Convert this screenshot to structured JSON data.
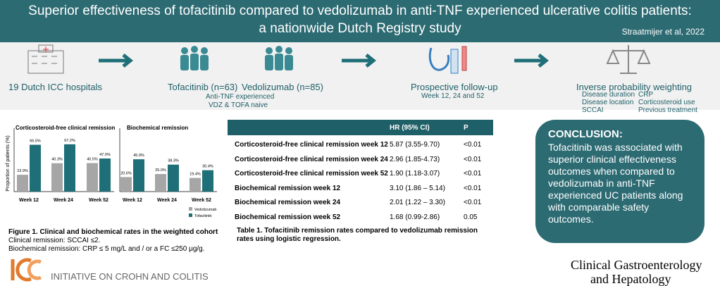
{
  "header": {
    "title_lines": [
      "Superior effectiveness of tofacitinib compared to vedolizumab in anti-TNF experienced ulcerative colitis patients:",
      "a nationwide Dutch Registry study"
    ],
    "citation": "Straatmijer et al, 2022"
  },
  "flow": {
    "hospitals": "19 Dutch ICC hospitals",
    "tofacitinib": "Tofacitinib (n=63)",
    "vedolizumab": "Vedolizumab (n=85)",
    "cohort_notes": [
      "Anti-TNF experienced",
      "VDZ & TOFA naive"
    ],
    "follow_up": "Prospective follow-up",
    "follow_up_weeks": "Week 12, 24 and 52",
    "weighting": "Inverse probability weighting",
    "covariates": [
      "Disease duration",
      "Disease location",
      "SCCAI",
      "CRP",
      "Corticosteroid use",
      "Previous treatment"
    ]
  },
  "chart_data": [
    {
      "type": "bar",
      "title": "Corticosteroid-free clinical remission",
      "y_label": "Proportion of patients (%)",
      "categories": [
        "Week 12",
        "Week 24",
        "Week 52"
      ],
      "ylim": [
        0,
        100
      ],
      "series": [
        {
          "name": "Vedolizumab",
          "color": "#a6a6a6",
          "values": [
            23.9,
            40.3,
            40.5
          ],
          "value_labels": [
            "23.9%",
            "40.3%",
            "40.5%"
          ]
        },
        {
          "name": "Tofacitinib",
          "color": "#1f6f78",
          "values": [
            66.5,
            67.2,
            47.0
          ],
          "value_labels": [
            "66.5%",
            "67.2%",
            "47.0%"
          ]
        }
      ]
    },
    {
      "type": "bar",
      "title": "Biochemical remission",
      "categories": [
        "Week 12",
        "Week 24",
        "Week 52"
      ],
      "ylim": [
        0,
        100
      ],
      "series": [
        {
          "name": "Vedolizumab",
          "color": "#a6a6a6",
          "values": [
            20.6,
            25.0,
            19.4
          ],
          "value_labels": [
            "20.6%",
            "25.0%",
            "19.4%"
          ]
        },
        {
          "name": "Tofacitinib",
          "color": "#1f6f78",
          "values": [
            45.9,
            38.3,
            30.4
          ],
          "value_labels": [
            "45.9%",
            "38.3%",
            "30.4%"
          ]
        }
      ],
      "legend": "bottom-right"
    }
  ],
  "figure_caption": {
    "title": "Figure 1. Clinical and biochemical rates in the weighted cohort",
    "lines": [
      "Clinical remission: SCCAI ≤2.",
      "Biochemical remission: CRP ≤ 5 mg/L and / or a FC ≤250    μg/g."
    ]
  },
  "table": {
    "header": [
      "HR (95% CI)",
      "P"
    ],
    "rows": [
      [
        "Corticosteroid-free clinical remission week 12",
        "5.87 (3.55-9.70)",
        "<0.01"
      ],
      [
        "Corticosteroid-free clinical remission week 24",
        "2.96 (1.85-4.73)",
        "<0.01"
      ],
      [
        "Corticosteroid-free clinical remission week 52",
        "1.90 (1.18-3.07)",
        "<0.01"
      ],
      [
        "Biochemical remission week 12",
        "3.10 (1.86 – 5.14)",
        "<0.01"
      ],
      [
        "Biochemical remission week 24",
        "2.01 (1.22 – 3.30)",
        "<0.01"
      ],
      [
        "Biochemical remission week 52",
        "1.68 (0.99-2.86)",
        "0.05"
      ]
    ],
    "caption": "Table 1. Tofacitinib remission rates compared to vedolizumab remission rates using logistic regression."
  },
  "conclusion": {
    "heading": "CONCLUSION:",
    "text": "Tofacitinib was associated with superior clinical effectiveness outcomes when compared to vedolizumab in anti-TNF experienced UC patients along with comparable safety outcomes."
  },
  "footer": {
    "organization": "INITIATIVE ON CROHN AND COLITIS",
    "journal_lines": [
      "Clinical Gastroenterology",
      "and Hepatology"
    ]
  }
}
